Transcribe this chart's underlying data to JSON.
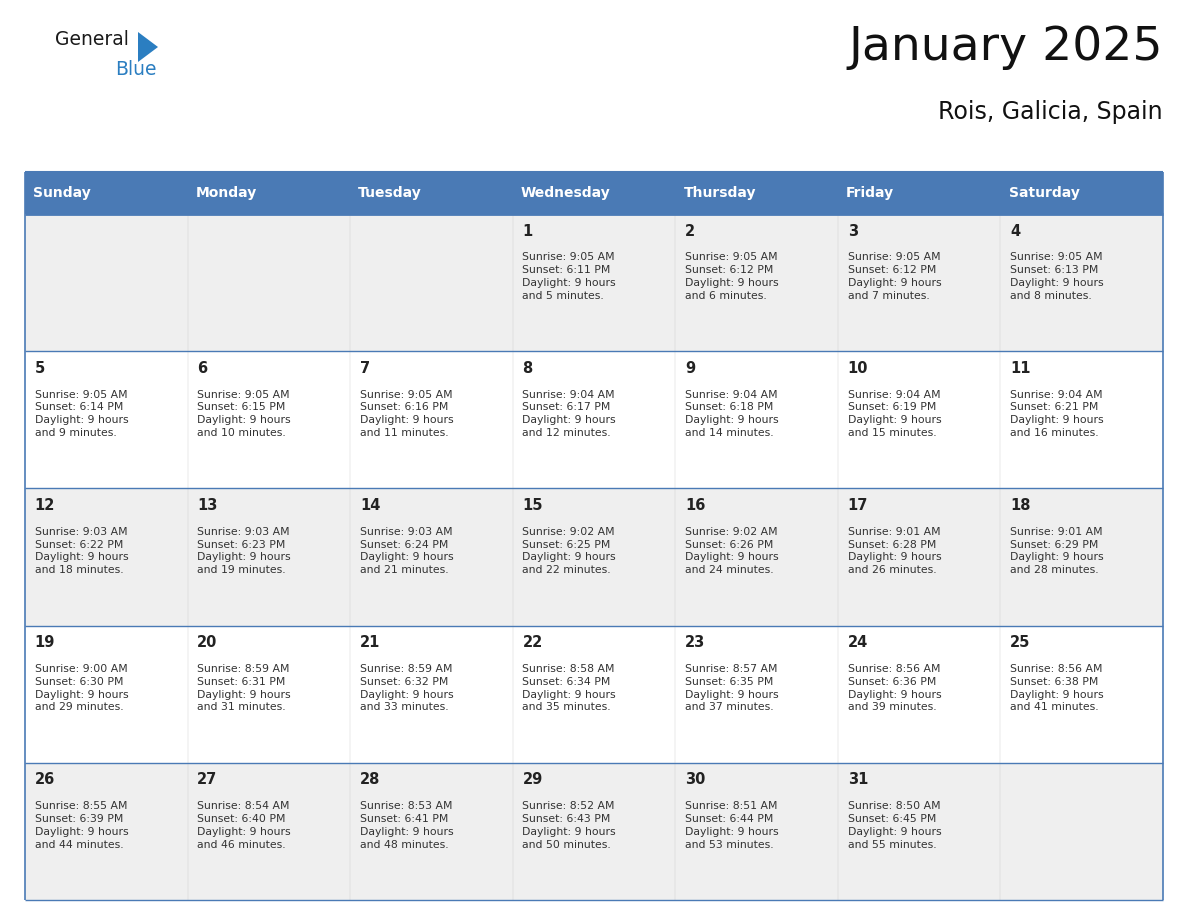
{
  "title": "January 2025",
  "subtitle": "Rois, Galicia, Spain",
  "header_bg": "#4a7ab5",
  "header_text": "#FFFFFF",
  "day_names": [
    "Sunday",
    "Monday",
    "Tuesday",
    "Wednesday",
    "Thursday",
    "Friday",
    "Saturday"
  ],
  "row_bg_odd": "#EFEFEF",
  "row_bg_even": "#FFFFFF",
  "cell_border": "#4a7ab5",
  "day_num_color": "#222222",
  "info_color": "#333333",
  "logo_general_color": "#1a1a1a",
  "logo_blue_color": "#2B7EC1",
  "calendar": [
    [
      null,
      null,
      null,
      {
        "day": 1,
        "sunrise": "9:05 AM",
        "sunset": "6:11 PM",
        "daylight": "9 hours\nand 5 minutes."
      },
      {
        "day": 2,
        "sunrise": "9:05 AM",
        "sunset": "6:12 PM",
        "daylight": "9 hours\nand 6 minutes."
      },
      {
        "day": 3,
        "sunrise": "9:05 AM",
        "sunset": "6:12 PM",
        "daylight": "9 hours\nand 7 minutes."
      },
      {
        "day": 4,
        "sunrise": "9:05 AM",
        "sunset": "6:13 PM",
        "daylight": "9 hours\nand 8 minutes."
      }
    ],
    [
      {
        "day": 5,
        "sunrise": "9:05 AM",
        "sunset": "6:14 PM",
        "daylight": "9 hours\nand 9 minutes."
      },
      {
        "day": 6,
        "sunrise": "9:05 AM",
        "sunset": "6:15 PM",
        "daylight": "9 hours\nand 10 minutes."
      },
      {
        "day": 7,
        "sunrise": "9:05 AM",
        "sunset": "6:16 PM",
        "daylight": "9 hours\nand 11 minutes."
      },
      {
        "day": 8,
        "sunrise": "9:04 AM",
        "sunset": "6:17 PM",
        "daylight": "9 hours\nand 12 minutes."
      },
      {
        "day": 9,
        "sunrise": "9:04 AM",
        "sunset": "6:18 PM",
        "daylight": "9 hours\nand 14 minutes."
      },
      {
        "day": 10,
        "sunrise": "9:04 AM",
        "sunset": "6:19 PM",
        "daylight": "9 hours\nand 15 minutes."
      },
      {
        "day": 11,
        "sunrise": "9:04 AM",
        "sunset": "6:21 PM",
        "daylight": "9 hours\nand 16 minutes."
      }
    ],
    [
      {
        "day": 12,
        "sunrise": "9:03 AM",
        "sunset": "6:22 PM",
        "daylight": "9 hours\nand 18 minutes."
      },
      {
        "day": 13,
        "sunrise": "9:03 AM",
        "sunset": "6:23 PM",
        "daylight": "9 hours\nand 19 minutes."
      },
      {
        "day": 14,
        "sunrise": "9:03 AM",
        "sunset": "6:24 PM",
        "daylight": "9 hours\nand 21 minutes."
      },
      {
        "day": 15,
        "sunrise": "9:02 AM",
        "sunset": "6:25 PM",
        "daylight": "9 hours\nand 22 minutes."
      },
      {
        "day": 16,
        "sunrise": "9:02 AM",
        "sunset": "6:26 PM",
        "daylight": "9 hours\nand 24 minutes."
      },
      {
        "day": 17,
        "sunrise": "9:01 AM",
        "sunset": "6:28 PM",
        "daylight": "9 hours\nand 26 minutes."
      },
      {
        "day": 18,
        "sunrise": "9:01 AM",
        "sunset": "6:29 PM",
        "daylight": "9 hours\nand 28 minutes."
      }
    ],
    [
      {
        "day": 19,
        "sunrise": "9:00 AM",
        "sunset": "6:30 PM",
        "daylight": "9 hours\nand 29 minutes."
      },
      {
        "day": 20,
        "sunrise": "8:59 AM",
        "sunset": "6:31 PM",
        "daylight": "9 hours\nand 31 minutes."
      },
      {
        "day": 21,
        "sunrise": "8:59 AM",
        "sunset": "6:32 PM",
        "daylight": "9 hours\nand 33 minutes."
      },
      {
        "day": 22,
        "sunrise": "8:58 AM",
        "sunset": "6:34 PM",
        "daylight": "9 hours\nand 35 minutes."
      },
      {
        "day": 23,
        "sunrise": "8:57 AM",
        "sunset": "6:35 PM",
        "daylight": "9 hours\nand 37 minutes."
      },
      {
        "day": 24,
        "sunrise": "8:56 AM",
        "sunset": "6:36 PM",
        "daylight": "9 hours\nand 39 minutes."
      },
      {
        "day": 25,
        "sunrise": "8:56 AM",
        "sunset": "6:38 PM",
        "daylight": "9 hours\nand 41 minutes."
      }
    ],
    [
      {
        "day": 26,
        "sunrise": "8:55 AM",
        "sunset": "6:39 PM",
        "daylight": "9 hours\nand 44 minutes."
      },
      {
        "day": 27,
        "sunrise": "8:54 AM",
        "sunset": "6:40 PM",
        "daylight": "9 hours\nand 46 minutes."
      },
      {
        "day": 28,
        "sunrise": "8:53 AM",
        "sunset": "6:41 PM",
        "daylight": "9 hours\nand 48 minutes."
      },
      {
        "day": 29,
        "sunrise": "8:52 AM",
        "sunset": "6:43 PM",
        "daylight": "9 hours\nand 50 minutes."
      },
      {
        "day": 30,
        "sunrise": "8:51 AM",
        "sunset": "6:44 PM",
        "daylight": "9 hours\nand 53 minutes."
      },
      {
        "day": 31,
        "sunrise": "8:50 AM",
        "sunset": "6:45 PM",
        "daylight": "9 hours\nand 55 minutes."
      },
      null
    ]
  ]
}
